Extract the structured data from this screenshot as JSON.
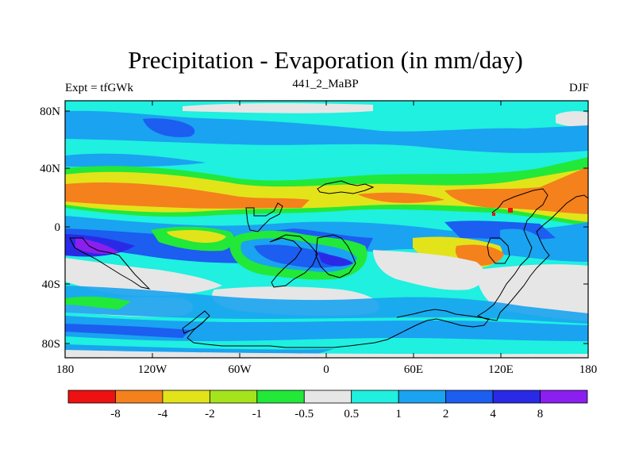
{
  "header": {
    "title": "Precipitation - Evaporation (in mm/day)",
    "experiment": "Expt = tfGWk",
    "period": "441_2_MaBP",
    "season": "DJF"
  },
  "map": {
    "lat_ticks": [
      "80N",
      "40N",
      "0",
      "40S",
      "80S"
    ],
    "lon_ticks": [
      "180",
      "120W",
      "60W",
      "0",
      "60E",
      "120E",
      "180"
    ]
  },
  "colorbar": {
    "colors": [
      "#ee1111",
      "#f4811c",
      "#e3e31a",
      "#a5e41c",
      "#22e83a",
      "#e6e6e6",
      "#1ff0e0",
      "#1aa3f0",
      "#1b5ef0",
      "#2a2ae6",
      "#8a1ff0"
    ],
    "labels": [
      "-8",
      "-4",
      "-2",
      "-1",
      "-0.5",
      "0.5",
      "1",
      "2",
      "4",
      "8"
    ]
  }
}
